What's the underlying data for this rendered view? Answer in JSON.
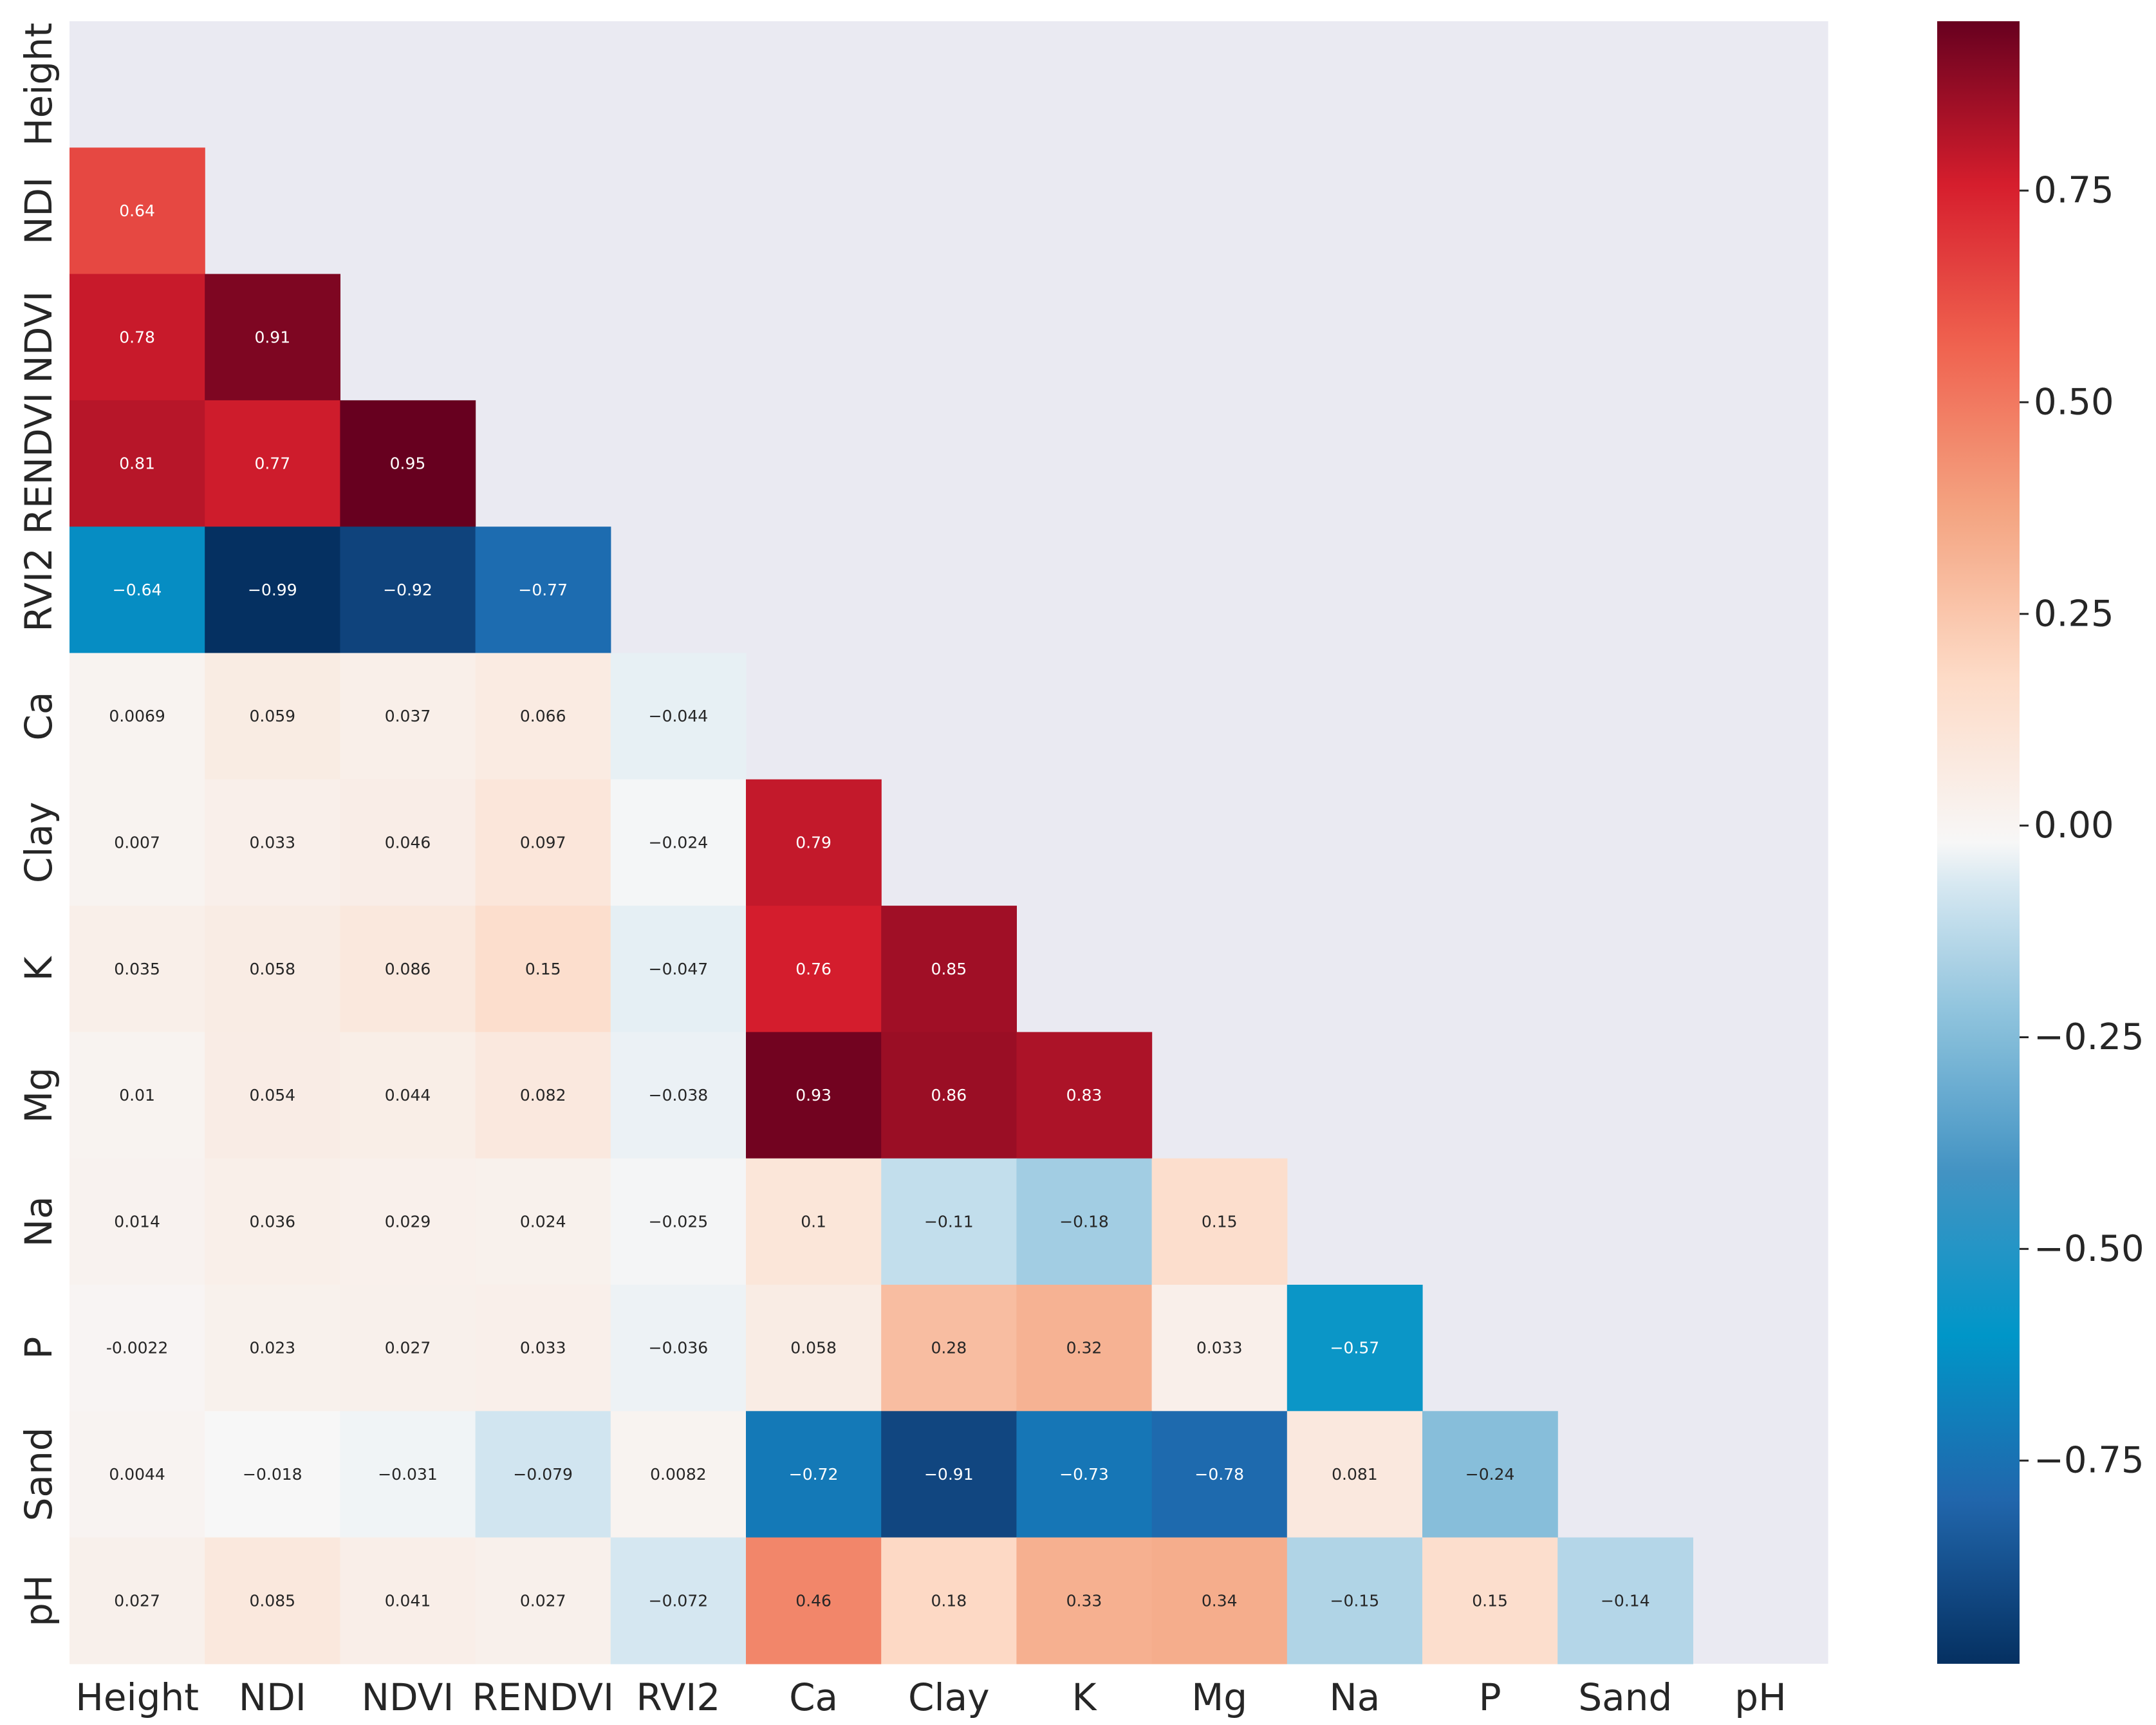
{
  "chart_data": {
    "type": "heatmap",
    "title": "",
    "mask": "upper-triangle-and-diagonal",
    "rows": [
      "Height",
      "NDI",
      "NDVI",
      "RENDVI",
      "RVI2",
      "Ca",
      "Clay",
      "K",
      "Mg",
      "Na",
      "P",
      "Sand",
      "pH"
    ],
    "columns": [
      "Height",
      "NDI",
      "NDVI",
      "RENDVI",
      "RVI2",
      "Ca",
      "Clay",
      "K",
      "Mg",
      "Na",
      "P",
      "Sand",
      "pH"
    ],
    "values": [
      [
        null,
        null,
        null,
        null,
        null,
        null,
        null,
        null,
        null,
        null,
        null,
        null,
        null
      ],
      [
        0.64,
        null,
        null,
        null,
        null,
        null,
        null,
        null,
        null,
        null,
        null,
        null,
        null
      ],
      [
        0.78,
        0.91,
        null,
        null,
        null,
        null,
        null,
        null,
        null,
        null,
        null,
        null,
        null
      ],
      [
        0.81,
        0.77,
        0.95,
        null,
        null,
        null,
        null,
        null,
        null,
        null,
        null,
        null,
        null
      ],
      [
        -0.64,
        -0.99,
        -0.92,
        -0.77,
        null,
        null,
        null,
        null,
        null,
        null,
        null,
        null,
        null
      ],
      [
        0.0069,
        0.059,
        0.037,
        0.066,
        -0.044,
        null,
        null,
        null,
        null,
        null,
        null,
        null,
        null
      ],
      [
        0.007,
        0.033,
        0.046,
        0.097,
        -0.024,
        0.79,
        null,
        null,
        null,
        null,
        null,
        null,
        null
      ],
      [
        0.035,
        0.058,
        0.086,
        0.15,
        -0.047,
        0.76,
        0.85,
        null,
        null,
        null,
        null,
        null,
        null
      ],
      [
        0.01,
        0.054,
        0.044,
        0.082,
        -0.038,
        0.93,
        0.86,
        0.83,
        null,
        null,
        null,
        null,
        null
      ],
      [
        0.014,
        0.036,
        0.029,
        0.024,
        -0.025,
        0.1,
        -0.11,
        -0.18,
        0.15,
        null,
        null,
        null,
        null
      ],
      [
        -0.0022,
        0.023,
        0.027,
        0.033,
        -0.036,
        0.058,
        0.28,
        0.32,
        0.033,
        -0.57,
        null,
        null,
        null
      ],
      [
        0.0044,
        -0.018,
        -0.031,
        -0.079,
        0.0082,
        -0.72,
        -0.91,
        -0.73,
        -0.78,
        0.081,
        -0.24,
        null,
        null
      ],
      [
        0.027,
        0.085,
        0.041,
        0.027,
        -0.072,
        0.46,
        0.18,
        0.33,
        0.34,
        -0.15,
        0.15,
        -0.14,
        null
      ]
    ],
    "labels": [
      [
        null,
        null,
        null,
        null,
        null,
        null,
        null,
        null,
        null,
        null,
        null,
        null,
        null
      ],
      [
        "0.64",
        null,
        null,
        null,
        null,
        null,
        null,
        null,
        null,
        null,
        null,
        null,
        null
      ],
      [
        "0.78",
        "0.91",
        null,
        null,
        null,
        null,
        null,
        null,
        null,
        null,
        null,
        null,
        null
      ],
      [
        "0.81",
        "0.77",
        "0.95",
        null,
        null,
        null,
        null,
        null,
        null,
        null,
        null,
        null,
        null
      ],
      [
        "−0.64",
        "−0.99",
        "−0.92",
        "−0.77",
        null,
        null,
        null,
        null,
        null,
        null,
        null,
        null,
        null
      ],
      [
        "0.0069",
        "0.059",
        "0.037",
        "0.066",
        "−0.044",
        null,
        null,
        null,
        null,
        null,
        null,
        null,
        null
      ],
      [
        "0.007",
        "0.033",
        "0.046",
        "0.097",
        "−0.024",
        "0.79",
        null,
        null,
        null,
        null,
        null,
        null,
        null
      ],
      [
        "0.035",
        "0.058",
        "0.086",
        "0.15",
        "−0.047",
        "0.76",
        "0.85",
        null,
        null,
        null,
        null,
        null,
        null
      ],
      [
        "0.01",
        "0.054",
        "0.044",
        "0.082",
        "−0.038",
        "0.93",
        "0.86",
        "0.83",
        null,
        null,
        null,
        null,
        null
      ],
      [
        "0.014",
        "0.036",
        "0.029",
        "0.024",
        "−0.025",
        "0.1",
        "−0.11",
        "−0.18",
        "0.15",
        null,
        null,
        null,
        null
      ],
      [
        "-0.0022",
        "0.023",
        "0.027",
        "0.033",
        "−0.036",
        "0.058",
        "0.28",
        "0.32",
        "0.033",
        "−0.57",
        null,
        null,
        null
      ],
      [
        "0.0044",
        "−0.018",
        "−0.031",
        "−0.079",
        "0.0082",
        "−0.72",
        "−0.91",
        "−0.73",
        "−0.78",
        "0.081",
        "−0.24",
        null,
        null
      ],
      [
        "0.027",
        "0.085",
        "0.041",
        "0.027",
        "−0.072",
        "0.46",
        "0.18",
        "0.33",
        "0.34",
        "−0.15",
        "0.15",
        "−0.14",
        null
      ]
    ],
    "colormap": "RdBu_r",
    "vmin": -0.99,
    "vmax": 0.95,
    "colorbar": {
      "ticks": [
        0.75,
        0.5,
        0.25,
        0.0,
        -0.25,
        -0.5,
        -0.75
      ],
      "tick_labels": [
        "0.75",
        "0.50",
        "0.25",
        "0.00",
        "−0.25",
        "−0.50",
        "−0.75"
      ]
    },
    "background_color": "#eaeaf2",
    "xlabel": "",
    "ylabel": ""
  }
}
